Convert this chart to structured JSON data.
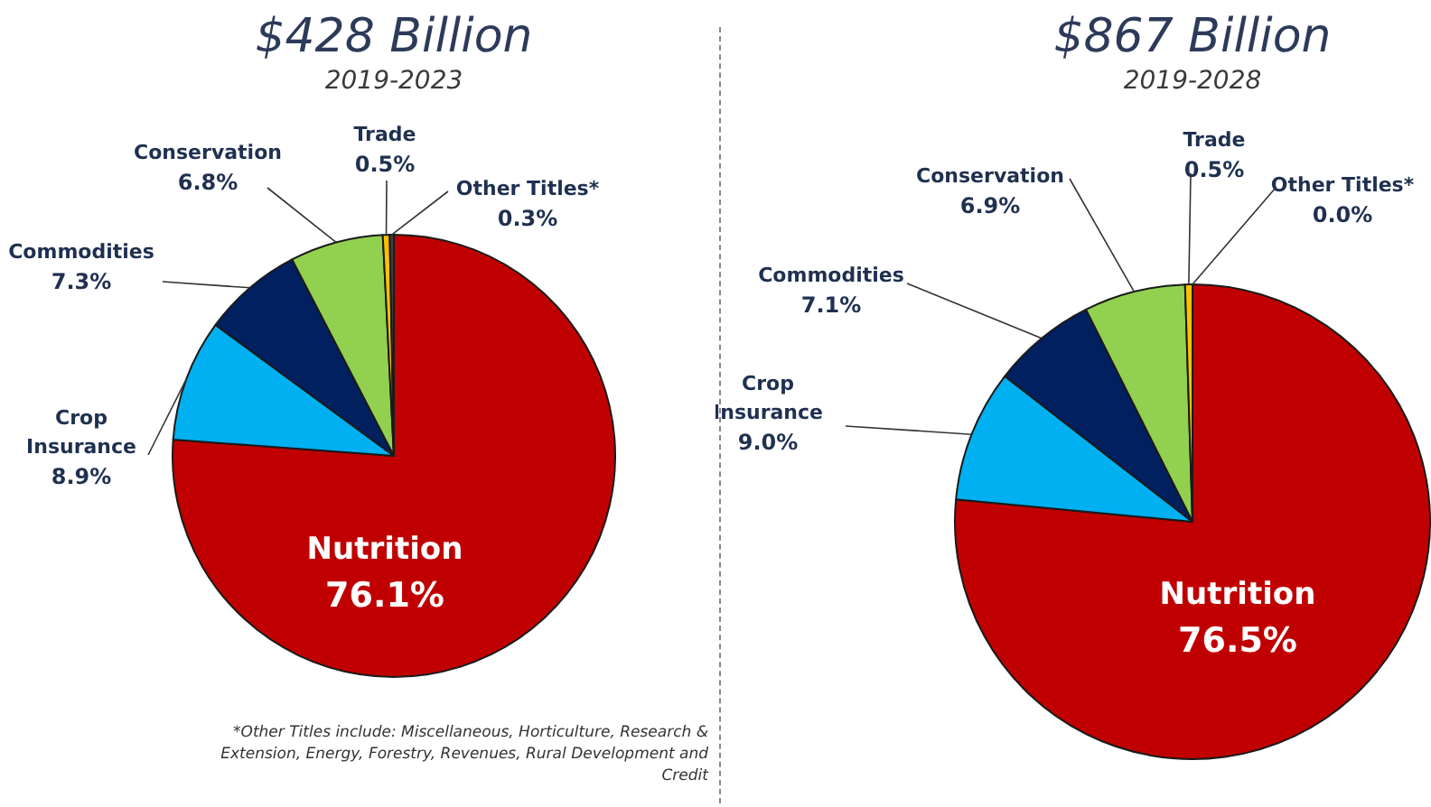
{
  "chart_data": [
    {
      "type": "pie",
      "title": "$428 Billion",
      "subtitle": "2019-2023",
      "categories": [
        "Nutrition",
        "Crop Insurance",
        "Commodities",
        "Conservation",
        "Trade",
        "Other Titles*"
      ],
      "values": [
        76.1,
        8.9,
        7.3,
        6.8,
        0.5,
        0.3
      ],
      "value_labels": [
        "76.1%",
        "8.9%",
        "7.3%",
        "6.8%",
        "0.5%",
        "0.3%"
      ],
      "colors": [
        "#c00000",
        "#00b0f0",
        "#002060",
        "#92d050",
        "#ffc000",
        "#404040"
      ],
      "annotations": [
        "*Other Titles include: Miscellaneous, Horticulture, Research & Extension, Energy, Forestry, Revenues, Rural Development and Credit"
      ]
    },
    {
      "type": "pie",
      "title": "$867 Billion",
      "subtitle": "2019-2028",
      "categories": [
        "Nutrition",
        "Crop Insurance",
        "Commodities",
        "Conservation",
        "Trade",
        "Other Titles*"
      ],
      "values": [
        76.5,
        9.0,
        7.1,
        6.9,
        0.5,
        0.0
      ],
      "value_labels": [
        "76.5%",
        "9.0%",
        "7.1%",
        "6.9%",
        "0.5%",
        "0.0%"
      ],
      "colors": [
        "#c00000",
        "#00b0f0",
        "#002060",
        "#92d050",
        "#ffc000",
        "#404040"
      ]
    }
  ]
}
